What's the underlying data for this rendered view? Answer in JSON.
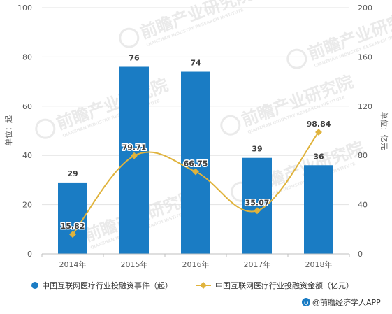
{
  "chart_data": {
    "type": "bar",
    "categories": [
      "2014年",
      "2015年",
      "2016年",
      "2017年",
      "2018年"
    ],
    "series": [
      {
        "name": "中国互联网医疗行业投融资事件（起）",
        "type": "bar",
        "axis": "left",
        "color": "#1a7cc4",
        "values": [
          29,
          76,
          74,
          39,
          36
        ],
        "labels": [
          "29",
          "76",
          "74",
          "39",
          "36"
        ]
      },
      {
        "name": "中国互联网医疗行业投融资金额（亿元）",
        "type": "line",
        "axis": "right",
        "color": "#e0b33c",
        "values": [
          15.82,
          79.71,
          66.75,
          35.07,
          98.84
        ],
        "labels": [
          "15.82",
          "79.71",
          "66.75",
          "35.07",
          "98.84"
        ]
      }
    ],
    "ylabel": "单位：起",
    "y2label": "单位：亿元",
    "ylim": [
      0,
      100
    ],
    "y2lim": [
      0,
      200
    ],
    "yticks": [
      "0",
      "20",
      "40",
      "60",
      "80",
      "100"
    ],
    "y2ticks": [
      "0",
      "40",
      "80",
      "120",
      "160",
      "200"
    ],
    "grid": true,
    "legend_position": "bottom"
  },
  "watermark": {
    "text": "前瞻产业研究院",
    "subtext": "QIANZHAN INDUSTRY RESEARCH INSTITUTE"
  },
  "credit": {
    "text": "@前瞻经济学人APP"
  }
}
